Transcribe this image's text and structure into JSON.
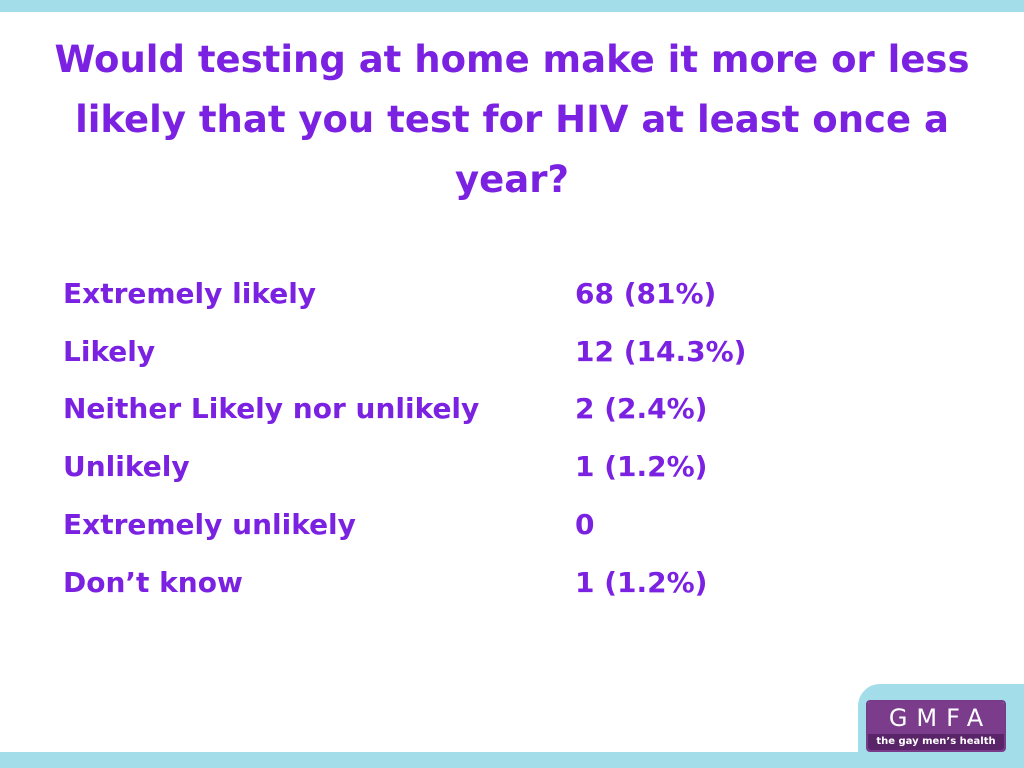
{
  "header": {
    "title": "Would testing at home make it more or less likely that you test for HIV at least once a year?"
  },
  "table": {
    "rows": [
      [
        "Extremely likely",
        "68 (81%)"
      ],
      [
        "Likely",
        "12 (14.3%)"
      ],
      [
        "Neither Likely nor unlikely",
        "2 (2.4%)"
      ],
      [
        "Unlikely",
        "1 (1.2%)"
      ],
      [
        "Extremely unlikely",
        "0"
      ],
      [
        "Don’t know",
        "1 (1.2%)"
      ]
    ]
  },
  "logo": {
    "name": "GMFA",
    "tagline": "the gay men’s health charity"
  }
}
